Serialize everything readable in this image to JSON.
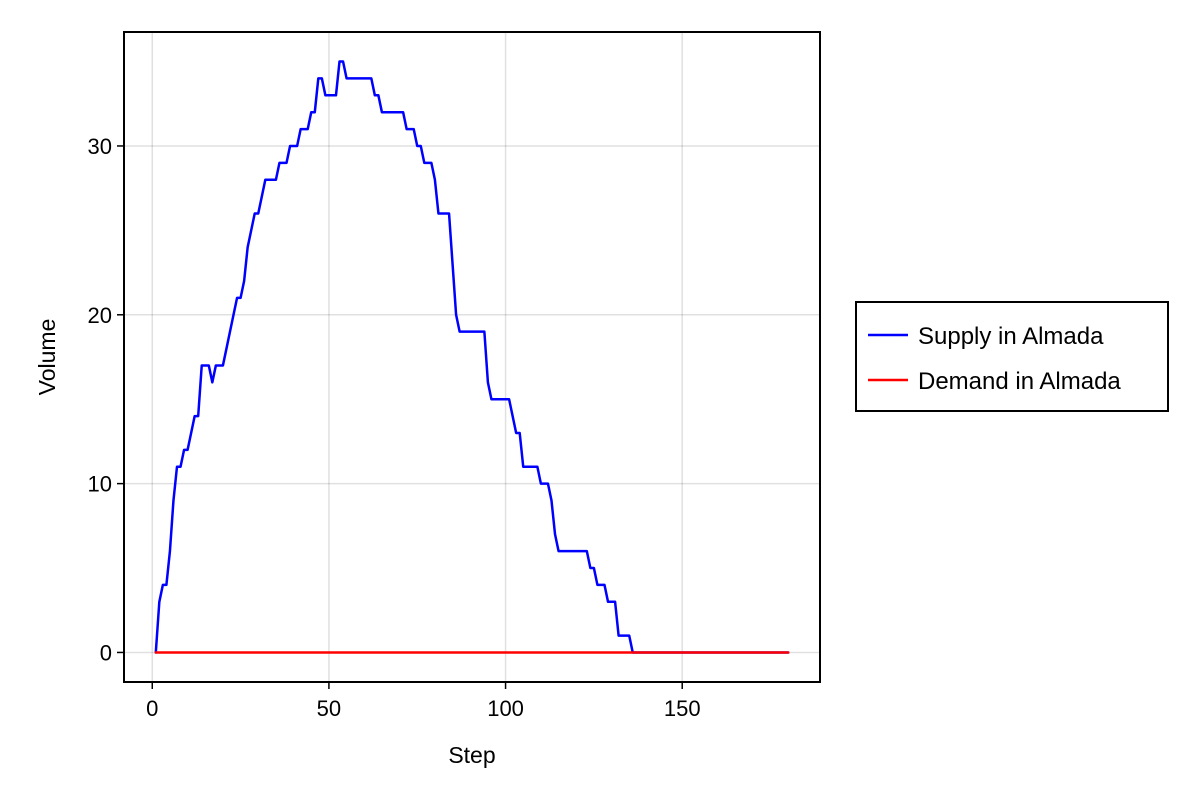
{
  "chart_data": {
    "type": "line",
    "title": "",
    "xlabel": "Step",
    "ylabel": "Volume",
    "xlim": [
      -8,
      189
    ],
    "ylim": [
      -1.75,
      36.75
    ],
    "xticks": [
      0,
      50,
      100,
      150
    ],
    "yticks": [
      0,
      10,
      20,
      30
    ],
    "grid": true,
    "legend_position": "right-outside",
    "series": [
      {
        "name": "Supply in Almada",
        "color": "#0000ff",
        "x": [
          1,
          2,
          3,
          4,
          5,
          6,
          7,
          8,
          9,
          10,
          11,
          12,
          13,
          14,
          15,
          16,
          17,
          18,
          19,
          20,
          21,
          22,
          23,
          24,
          25,
          26,
          27,
          28,
          29,
          30,
          31,
          32,
          33,
          34,
          35,
          36,
          37,
          38,
          39,
          40,
          41,
          42,
          43,
          44,
          45,
          46,
          47,
          48,
          49,
          50,
          51,
          52,
          53,
          54,
          55,
          56,
          57,
          58,
          59,
          60,
          61,
          62,
          63,
          64,
          65,
          66,
          67,
          68,
          69,
          70,
          71,
          72,
          73,
          74,
          75,
          76,
          77,
          78,
          79,
          80,
          81,
          82,
          83,
          84,
          85,
          86,
          87,
          88,
          89,
          90,
          91,
          92,
          93,
          94,
          95,
          96,
          97,
          98,
          99,
          100,
          101,
          102,
          103,
          104,
          105,
          106,
          107,
          108,
          109,
          110,
          111,
          112,
          113,
          114,
          115,
          116,
          117,
          118,
          119,
          120,
          121,
          122,
          123,
          124,
          125,
          126,
          127,
          128,
          129,
          130,
          131,
          132,
          133,
          134,
          135,
          136,
          137,
          138,
          139,
          140,
          141,
          142,
          143,
          144,
          145,
          146,
          147,
          148,
          149,
          150,
          151,
          152,
          153,
          154,
          155,
          156,
          157,
          158,
          159,
          160,
          161,
          162,
          163,
          164,
          165,
          166,
          167,
          168,
          169,
          170,
          171,
          172,
          173,
          174,
          175,
          176,
          177,
          178,
          179,
          180
        ],
        "values": [
          0,
          3,
          4,
          4,
          6,
          9,
          11,
          11,
          12,
          12,
          13,
          14,
          14,
          17,
          17,
          17,
          16,
          17,
          17,
          17,
          18,
          19,
          20,
          21,
          21,
          22,
          24,
          25,
          26,
          26,
          27,
          28,
          28,
          28,
          28,
          29,
          29,
          29,
          30,
          30,
          30,
          31,
          31,
          31,
          32,
          32,
          34,
          34,
          33,
          33,
          33,
          33,
          35,
          35,
          34,
          34,
          34,
          34,
          34,
          34,
          34,
          34,
          33,
          33,
          32,
          32,
          32,
          32,
          32,
          32,
          32,
          31,
          31,
          31,
          30,
          30,
          29,
          29,
          29,
          28,
          26,
          26,
          26,
          26,
          23,
          20,
          19,
          19,
          19,
          19,
          19,
          19,
          19,
          19,
          16,
          15,
          15,
          15,
          15,
          15,
          15,
          14,
          13,
          13,
          11,
          11,
          11,
          11,
          11,
          10,
          10,
          10,
          9,
          7,
          6,
          6,
          6,
          6,
          6,
          6,
          6,
          6,
          6,
          5,
          5,
          4,
          4,
          4,
          3,
          3,
          3,
          1,
          1,
          1,
          1,
          0,
          0,
          0,
          0,
          0,
          0,
          0,
          0,
          0,
          0,
          0,
          0,
          0,
          0,
          0,
          0,
          0,
          0,
          0,
          0,
          0,
          0,
          0,
          0,
          0,
          0,
          0,
          0,
          0,
          0,
          0,
          0,
          0,
          0,
          0,
          0,
          0,
          0,
          0,
          0,
          0,
          0,
          0,
          0,
          0
        ]
      },
      {
        "name": "Demand in Almada",
        "color": "#ff0000",
        "x": [
          1,
          180
        ],
        "values": [
          0,
          0
        ]
      }
    ]
  }
}
